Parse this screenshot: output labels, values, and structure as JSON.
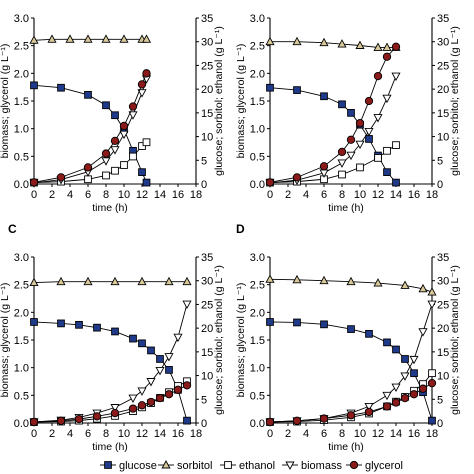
{
  "chart_data": [
    {
      "type": "line",
      "panel_label": "",
      "xlabel": "time (h)",
      "ylabel_left": "biomass; glycerol (g L⁻¹)",
      "ylabel_right": "glucose; sorbitol; ethanol (g L⁻¹)",
      "xlim": [
        0,
        18
      ],
      "ylim_left": [
        0,
        3.0
      ],
      "ylim_right": [
        0,
        35
      ],
      "x_ticks": [
        "0",
        "2",
        "4",
        "6",
        "8",
        "10",
        "12",
        "14",
        "16",
        "18"
      ],
      "y_left_ticks": [
        "0.0",
        "0.5",
        "1.0",
        "1.5",
        "2.0",
        "2.5",
        "3.0"
      ],
      "y_right_ticks": [
        "0",
        "5",
        "10",
        "15",
        "20",
        "25",
        "30",
        "35"
      ],
      "series": [
        {
          "name": "glucose",
          "axis": "right",
          "marker": "square-filled",
          "color": "#1f3a8a",
          "x": [
            0,
            3,
            6,
            8,
            9,
            10,
            11,
            12,
            12.5
          ],
          "y": [
            20.8,
            20.3,
            18.8,
            16.6,
            14.5,
            11.5,
            7.0,
            2.5,
            0.3
          ]
        },
        {
          "name": "sorbitol",
          "axis": "right",
          "marker": "triangle-up",
          "color": "#d9c99a",
          "x": [
            0,
            2,
            4,
            6,
            8,
            10,
            12,
            12.5
          ],
          "y": [
            30.3,
            30.5,
            30.5,
            30.5,
            30.5,
            30.5,
            30.5,
            30.5
          ]
        },
        {
          "name": "ethanol",
          "axis": "right",
          "marker": "square-open",
          "color": "#ffffff",
          "x": [
            0,
            3,
            6,
            8,
            9,
            10,
            11,
            12,
            12.5
          ],
          "y": [
            0.3,
            0.5,
            1.0,
            1.8,
            2.8,
            4.0,
            5.8,
            8.0,
            8.8
          ]
        },
        {
          "name": "biomass",
          "axis": "left",
          "marker": "triangle-down-open",
          "color": "#ffffff",
          "x": [
            0,
            3,
            6,
            8,
            9,
            10,
            11,
            12,
            12.5
          ],
          "y": [
            0.02,
            0.08,
            0.22,
            0.42,
            0.62,
            0.9,
            1.25,
            1.65,
            1.9
          ]
        },
        {
          "name": "glycerol",
          "axis": "left",
          "marker": "circle-filled",
          "color": "#8b1a1a",
          "x": [
            0,
            3,
            6,
            8,
            9,
            10,
            11,
            12,
            12.5
          ],
          "y": [
            0.03,
            0.12,
            0.3,
            0.55,
            0.78,
            1.05,
            1.4,
            1.8,
            2.0
          ]
        }
      ]
    },
    {
      "type": "line",
      "panel_label": "",
      "xlabel": "time (h)",
      "ylabel_left": "biomass; glycerol (g L⁻¹)",
      "ylabel_right": "glucose; sorbitol; ethanol (g L⁻¹)",
      "xlim": [
        0,
        18
      ],
      "ylim_left": [
        0,
        3.0
      ],
      "ylim_right": [
        0,
        35
      ],
      "x_ticks": [
        "0",
        "2",
        "4",
        "6",
        "8",
        "10",
        "12",
        "14",
        "16",
        "18"
      ],
      "y_left_ticks": [
        "0.0",
        "0.5",
        "1.0",
        "1.5",
        "2.0",
        "2.5",
        "3.0"
      ],
      "y_right_ticks": [
        "0",
        "5",
        "10",
        "15",
        "20",
        "25",
        "30",
        "35"
      ],
      "series": [
        {
          "name": "glucose",
          "axis": "right",
          "marker": "square-filled",
          "color": "#1f3a8a",
          "x": [
            0,
            3,
            6,
            8,
            9,
            10,
            11,
            12,
            13,
            14
          ],
          "y": [
            20.3,
            19.8,
            18.5,
            16.8,
            15.0,
            12.5,
            9.5,
            6.0,
            2.5,
            0.3
          ]
        },
        {
          "name": "sorbitol",
          "axis": "right",
          "marker": "triangle-up",
          "color": "#d9c99a",
          "x": [
            0,
            3,
            6,
            8,
            10,
            12,
            13,
            14
          ],
          "y": [
            30.0,
            30.0,
            29.8,
            29.5,
            29.2,
            28.8,
            28.8,
            28.8
          ]
        },
        {
          "name": "ethanol",
          "axis": "right",
          "marker": "square-open",
          "color": "#ffffff",
          "x": [
            0,
            3,
            6,
            8,
            10,
            12,
            13,
            14
          ],
          "y": [
            0.3,
            0.5,
            1.0,
            2.0,
            3.5,
            5.5,
            7.0,
            8.2
          ]
        },
        {
          "name": "biomass",
          "axis": "left",
          "marker": "triangle-down-open",
          "color": "#ffffff",
          "x": [
            0,
            3,
            6,
            8,
            9,
            10,
            11,
            12,
            13,
            14
          ],
          "y": [
            0.02,
            0.07,
            0.2,
            0.38,
            0.52,
            0.72,
            0.95,
            1.2,
            1.55,
            1.95
          ]
        },
        {
          "name": "glycerol",
          "axis": "left",
          "marker": "circle-filled",
          "color": "#8b1a1a",
          "x": [
            0,
            3,
            6,
            8,
            9,
            10,
            11,
            12,
            13,
            14
          ],
          "y": [
            0.03,
            0.12,
            0.32,
            0.58,
            0.8,
            1.1,
            1.5,
            1.95,
            2.3,
            2.48
          ]
        }
      ]
    },
    {
      "type": "line",
      "panel_label": "C",
      "xlabel": "time (h)",
      "ylabel_left": "biomass; glycerol (g L⁻¹)",
      "ylabel_right": "glucose; sorbitol; ethanol (g L⁻¹)",
      "xlim": [
        0,
        18
      ],
      "ylim_left": [
        0,
        3.0
      ],
      "ylim_right": [
        0,
        35
      ],
      "x_ticks": [
        "0",
        "2",
        "4",
        "6",
        "8",
        "10",
        "12",
        "14",
        "16",
        "18"
      ],
      "y_left_ticks": [
        "0.0",
        "0.5",
        "1.0",
        "1.5",
        "2.0",
        "2.5",
        "3.0"
      ],
      "y_right_ticks": [
        "0",
        "5",
        "10",
        "15",
        "20",
        "25",
        "30",
        "35"
      ],
      "series": [
        {
          "name": "glucose",
          "axis": "right",
          "marker": "square-filled",
          "color": "#1f3a8a",
          "x": [
            0,
            3,
            5,
            7,
            9,
            11,
            12,
            13,
            14,
            15,
            16,
            17
          ],
          "y": [
            21.3,
            21.0,
            20.7,
            20.1,
            19.3,
            17.8,
            16.8,
            15.3,
            13.5,
            11.2,
            7.0,
            0.5
          ]
        },
        {
          "name": "sorbitol",
          "axis": "right",
          "marker": "triangle-up",
          "color": "#d9c99a",
          "x": [
            0,
            3,
            6,
            9,
            12,
            15,
            17
          ],
          "y": [
            29.6,
            29.8,
            29.8,
            29.8,
            29.8,
            29.8,
            29.8
          ]
        },
        {
          "name": "ethanol",
          "axis": "right",
          "marker": "square-open",
          "color": "#ffffff",
          "x": [
            0,
            3,
            5,
            7,
            9,
            11,
            12,
            13,
            14,
            15,
            16,
            17
          ],
          "y": [
            0.2,
            0.3,
            0.5,
            0.9,
            1.5,
            2.5,
            3.3,
            4.2,
            5.3,
            6.5,
            7.8,
            8.8
          ]
        },
        {
          "name": "biomass",
          "axis": "left",
          "marker": "triangle-down-open",
          "color": "#ffffff",
          "x": [
            0,
            3,
            5,
            7,
            9,
            11,
            12,
            13,
            14,
            15,
            16,
            17
          ],
          "y": [
            0.02,
            0.05,
            0.1,
            0.18,
            0.28,
            0.45,
            0.58,
            0.75,
            0.95,
            1.2,
            1.55,
            2.15
          ]
        },
        {
          "name": "glycerol",
          "axis": "left",
          "marker": "circle-filled",
          "color": "#8b1a1a",
          "x": [
            0,
            3,
            5,
            7,
            9,
            11,
            12,
            13,
            14,
            15,
            16,
            17
          ],
          "y": [
            0.02,
            0.04,
            0.07,
            0.12,
            0.18,
            0.26,
            0.32,
            0.38,
            0.45,
            0.52,
            0.6,
            0.68
          ]
        }
      ]
    },
    {
      "type": "line",
      "panel_label": "D",
      "xlabel": "time (h)",
      "ylabel_left": "biomass; glycerol (g L⁻¹)",
      "ylabel_right": "glucose; sorbitol; ethanol (g L⁻¹)",
      "xlim": [
        0,
        18
      ],
      "ylim_left": [
        0,
        3.0
      ],
      "ylim_right": [
        0,
        35
      ],
      "x_ticks": [
        "0",
        "2",
        "4",
        "6",
        "8",
        "10",
        "12",
        "14",
        "16",
        "18"
      ],
      "y_left_ticks": [
        "0.0",
        "0.5",
        "1.0",
        "1.5",
        "2.0",
        "2.5",
        "3.0"
      ],
      "y_right_ticks": [
        "0",
        "5",
        "10",
        "15",
        "20",
        "25",
        "30",
        "35"
      ],
      "series": [
        {
          "name": "glucose",
          "axis": "right",
          "marker": "square-filled",
          "color": "#1f3a8a",
          "x": [
            0,
            3,
            6,
            9,
            11,
            13,
            14,
            15,
            16,
            17,
            18
          ],
          "y": [
            21.3,
            21.2,
            20.8,
            19.8,
            18.8,
            17.0,
            15.5,
            13.5,
            10.5,
            6.5,
            0.5
          ]
        },
        {
          "name": "sorbitol",
          "axis": "right",
          "marker": "triangle-up",
          "color": "#d9c99a",
          "x": [
            0,
            3,
            6,
            9,
            12,
            15,
            17,
            18
          ],
          "y": [
            30.3,
            30.2,
            30.0,
            29.8,
            29.5,
            29.0,
            28.3,
            27.6
          ]
        },
        {
          "name": "ethanol",
          "axis": "right",
          "marker": "square-open",
          "color": "#ffffff",
          "x": [
            0,
            3,
            6,
            9,
            11,
            13,
            14,
            15,
            16,
            17,
            18
          ],
          "y": [
            0.2,
            0.3,
            0.6,
            1.2,
            2.0,
            3.5,
            4.5,
            5.5,
            6.8,
            8.2,
            10.5
          ]
        },
        {
          "name": "biomass",
          "axis": "left",
          "marker": "triangle-down-open",
          "color": "#ffffff",
          "x": [
            0,
            3,
            6,
            9,
            11,
            13,
            14,
            15,
            16,
            17,
            18
          ],
          "y": [
            0.02,
            0.04,
            0.08,
            0.18,
            0.3,
            0.5,
            0.65,
            0.85,
            1.15,
            1.65,
            2.15
          ]
        },
        {
          "name": "glycerol",
          "axis": "left",
          "marker": "circle-filled",
          "color": "#8b1a1a",
          "x": [
            0,
            3,
            6,
            9,
            11,
            13,
            14,
            15,
            16,
            17,
            18
          ],
          "y": [
            0.02,
            0.04,
            0.08,
            0.14,
            0.2,
            0.3,
            0.37,
            0.45,
            0.52,
            0.62,
            0.72
          ]
        }
      ]
    }
  ],
  "legend": {
    "items": [
      {
        "label": "glucose",
        "marker": "square-filled"
      },
      {
        "label": "sorbitol",
        "marker": "triangle-up"
      },
      {
        "label": "ethanol",
        "marker": "square-open"
      },
      {
        "label": "biomass",
        "marker": "triangle-down-open"
      },
      {
        "label": "glycerol",
        "marker": "circle-filled"
      }
    ]
  }
}
